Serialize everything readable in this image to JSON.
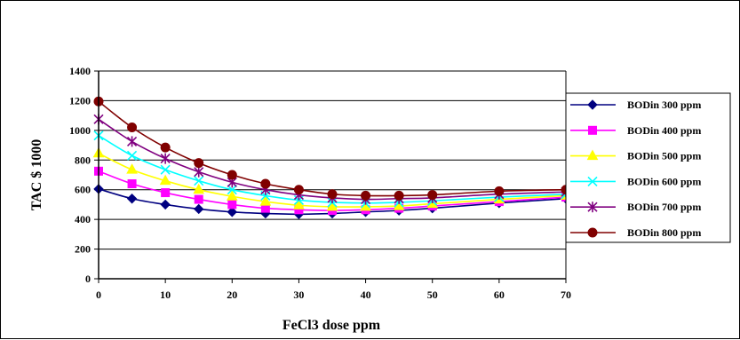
{
  "chart_data": {
    "type": "line",
    "title": "",
    "xlabel": "FeCl3 dose ppm",
    "ylabel": "TAC $ 1000",
    "x": [
      0,
      5,
      10,
      15,
      20,
      25,
      30,
      35,
      40,
      45,
      50,
      60,
      70
    ],
    "x_ticks": [
      0,
      10,
      20,
      30,
      40,
      50,
      60,
      70
    ],
    "y_ticks": [
      0,
      200,
      400,
      600,
      800,
      1000,
      1200,
      1400
    ],
    "xlim": [
      0,
      70
    ],
    "ylim": [
      0,
      1400
    ],
    "grid": "horizontal",
    "legend_position": "right",
    "series": [
      {
        "name": "BODin 300 ppm",
        "color": "#000080",
        "marker": "diamond",
        "values": [
          605,
          540,
          500,
          470,
          450,
          440,
          435,
          440,
          450,
          460,
          475,
          510,
          540
        ]
      },
      {
        "name": "BODin 400 ppm",
        "color": "#FF00FF",
        "marker": "square",
        "values": [
          725,
          640,
          580,
          535,
          500,
          475,
          465,
          460,
          465,
          475,
          490,
          520,
          550
        ]
      },
      {
        "name": "BODin 500 ppm",
        "color": "#FFFF00",
        "marker": "triangle",
        "values": [
          845,
          735,
          660,
          600,
          555,
          520,
          495,
          485,
          485,
          490,
          505,
          535,
          560
        ]
      },
      {
        "name": "BODin 600 ppm",
        "color": "#00FFFF",
        "marker": "x",
        "values": [
          965,
          830,
          735,
          660,
          600,
          560,
          530,
          515,
          510,
          515,
          525,
          550,
          570
        ]
      },
      {
        "name": "BODin 700 ppm",
        "color": "#800080",
        "marker": "star",
        "values": [
          1075,
          925,
          810,
          720,
          650,
          600,
          565,
          545,
          535,
          540,
          545,
          570,
          585
        ]
      },
      {
        "name": "BODin 800 ppm",
        "color": "#800000",
        "marker": "circle",
        "values": [
          1195,
          1020,
          885,
          780,
          700,
          640,
          600,
          570,
          560,
          560,
          565,
          590,
          600
        ]
      }
    ]
  }
}
